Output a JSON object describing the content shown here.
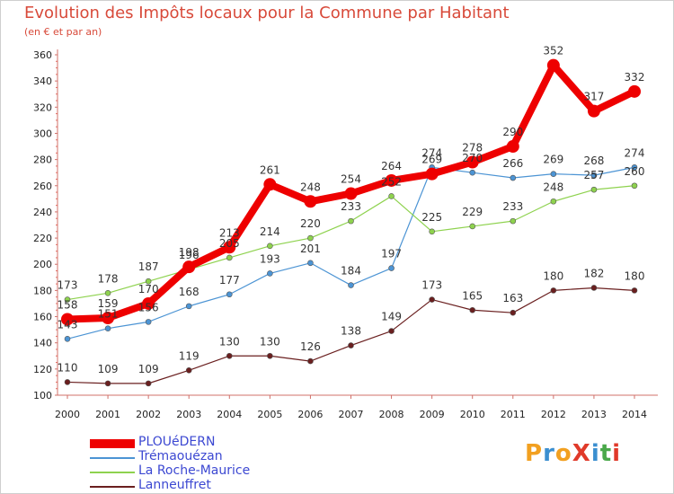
{
  "title": "Evolution des Impôts locaux pour la Commune par Habitant",
  "subtitle": "(en € et par an)",
  "logo": {
    "text": "ProXiti",
    "colors": [
      "#f2a020",
      "#3b8fd0",
      "#f2a020",
      "#e03a2a",
      "#3b8fd0",
      "#4aa84a",
      "#e03a2a"
    ]
  },
  "chart_data": {
    "type": "line",
    "x": [
      2000,
      2001,
      2002,
      2003,
      2004,
      2005,
      2006,
      2007,
      2008,
      2009,
      2010,
      2011,
      2012,
      2013,
      2014
    ],
    "x_tick_labels": [
      "2000",
      "2001",
      "2002",
      "2003",
      "2004",
      "2005",
      "2006",
      "2007",
      "2008",
      "2009",
      "2010",
      "2011",
      "2012",
      "2013",
      "2014"
    ],
    "ylim": [
      100,
      360
    ],
    "y_ticks": [
      100,
      120,
      140,
      160,
      180,
      200,
      220,
      240,
      260,
      280,
      300,
      320,
      340,
      360
    ],
    "grid": false,
    "legend_position": "bottom-left",
    "series": [
      {
        "name": "PLOUéDERN",
        "color": "#ee0000",
        "values": [
          158,
          159,
          170,
          198,
          213,
          261,
          248,
          254,
          264,
          269,
          278,
          290,
          352,
          317,
          332
        ]
      },
      {
        "name": "Trémaouézan",
        "color": "#4c94d4",
        "values": [
          143,
          151,
          156,
          168,
          177,
          193,
          201,
          184,
          197,
          274,
          270,
          266,
          269,
          268,
          274
        ]
      },
      {
        "name": "La Roche-Maurice",
        "color": "#8ed24e",
        "values": [
          173,
          178,
          187,
          196,
          205,
          214,
          220,
          233,
          252,
          225,
          229,
          233,
          248,
          257,
          260
        ]
      },
      {
        "name": "Lanneuffret",
        "color": "#6a1f1f",
        "values": [
          110,
          109,
          109,
          119,
          130,
          130,
          126,
          138,
          149,
          173,
          165,
          163,
          180,
          182,
          180
        ]
      }
    ],
    "data_labels": {
      "PLOUéDERN": [
        "158",
        "159",
        "170",
        "198",
        "213",
        "261",
        "248",
        "254",
        "264",
        "269",
        "278",
        "290",
        "352",
        "317",
        "332"
      ],
      "Trémaouézan": [
        "143",
        "151",
        "156",
        "168",
        "177",
        "193",
        "201",
        "184",
        "197",
        "274",
        "270",
        "266",
        "269",
        "268",
        "274"
      ],
      "La Roche-Maurice": [
        "173",
        "178",
        "187",
        "196",
        "205",
        "214",
        "220",
        "233",
        "252",
        "225",
        "229",
        "233",
        "248",
        "257",
        "260"
      ],
      "Lanneuffret": [
        "110",
        "109",
        "109",
        "119",
        "130",
        "130",
        "126",
        "138",
        "149",
        "173",
        "165",
        "163",
        "180",
        "182",
        "180"
      ]
    }
  }
}
